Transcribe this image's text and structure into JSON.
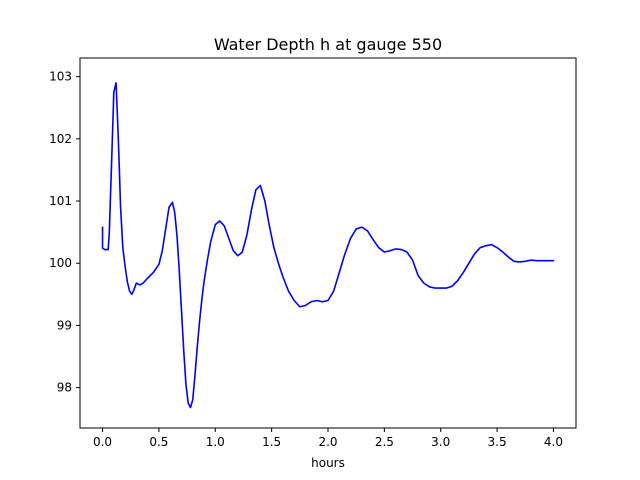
{
  "chart_data": {
    "type": "line",
    "title": "Water Depth h at gauge 550",
    "xlabel": "hours",
    "ylabel": "",
    "xlim": [
      -0.2,
      4.2
    ],
    "ylim": [
      97.35,
      103.3
    ],
    "xticks": [
      0.0,
      0.5,
      1.0,
      1.5,
      2.0,
      2.5,
      3.0,
      3.5,
      4.0
    ],
    "xtick_labels": [
      "0.0",
      "0.5",
      "1.0",
      "1.5",
      "2.0",
      "2.5",
      "3.0",
      "3.5",
      "4.0"
    ],
    "yticks": [
      98,
      99,
      100,
      101,
      102,
      103
    ],
    "ytick_labels": [
      "98",
      "99",
      "100",
      "101",
      "102",
      "103"
    ],
    "grid": false,
    "legend": "none",
    "series": [
      {
        "color": "#0000ff",
        "x": [
          0.0,
          0.0,
          0.02,
          0.05,
          0.06,
          0.08,
          0.1,
          0.12,
          0.14,
          0.16,
          0.18,
          0.2,
          0.22,
          0.24,
          0.26,
          0.28,
          0.3,
          0.33,
          0.36,
          0.4,
          0.45,
          0.5,
          0.53,
          0.56,
          0.59,
          0.62,
          0.64,
          0.66,
          0.68,
          0.7,
          0.72,
          0.74,
          0.76,
          0.78,
          0.8,
          0.82,
          0.84,
          0.86,
          0.88,
          0.9,
          0.93,
          0.96,
          1.0,
          1.04,
          1.08,
          1.12,
          1.16,
          1.2,
          1.24,
          1.28,
          1.32,
          1.36,
          1.4,
          1.44,
          1.48,
          1.52,
          1.56,
          1.6,
          1.65,
          1.7,
          1.75,
          1.8,
          1.85,
          1.9,
          1.95,
          2.0,
          2.05,
          2.1,
          2.15,
          2.2,
          2.25,
          2.3,
          2.35,
          2.4,
          2.45,
          2.5,
          2.55,
          2.6,
          2.65,
          2.7,
          2.75,
          2.8,
          2.85,
          2.9,
          2.95,
          3.0,
          3.05,
          3.1,
          3.15,
          3.2,
          3.25,
          3.3,
          3.35,
          3.4,
          3.45,
          3.5,
          3.55,
          3.6,
          3.65,
          3.7,
          3.75,
          3.8,
          3.85,
          3.9,
          3.95,
          4.0
        ],
        "y": [
          100.58,
          100.24,
          100.22,
          100.22,
          100.5,
          101.6,
          102.75,
          102.9,
          102.0,
          100.9,
          100.25,
          99.95,
          99.7,
          99.55,
          99.5,
          99.58,
          99.68,
          99.65,
          99.68,
          99.76,
          99.85,
          99.98,
          100.2,
          100.55,
          100.9,
          100.98,
          100.82,
          100.45,
          99.9,
          99.25,
          98.6,
          98.05,
          97.75,
          97.68,
          97.8,
          98.2,
          98.65,
          99.05,
          99.4,
          99.7,
          100.05,
          100.35,
          100.62,
          100.68,
          100.6,
          100.4,
          100.2,
          100.12,
          100.18,
          100.45,
          100.85,
          101.18,
          101.25,
          101.0,
          100.6,
          100.25,
          100.0,
          99.78,
          99.55,
          99.4,
          99.3,
          99.32,
          99.38,
          99.4,
          99.38,
          99.4,
          99.55,
          99.85,
          100.15,
          100.4,
          100.55,
          100.58,
          100.52,
          100.38,
          100.25,
          100.18,
          100.2,
          100.23,
          100.22,
          100.18,
          100.05,
          99.8,
          99.68,
          99.62,
          99.6,
          99.6,
          99.6,
          99.63,
          99.72,
          99.85,
          100.0,
          100.15,
          100.25,
          100.28,
          100.3,
          100.25,
          100.18,
          100.1,
          100.03,
          100.02,
          100.03,
          100.05,
          100.04,
          100.04,
          100.04,
          100.04
        ]
      }
    ]
  }
}
